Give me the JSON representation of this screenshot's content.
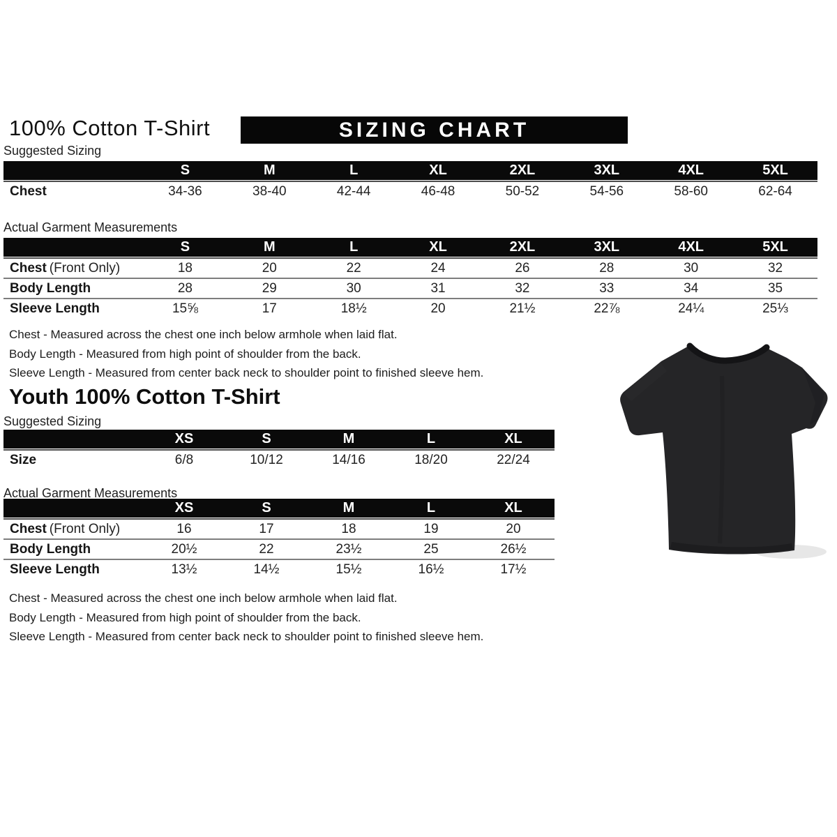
{
  "header": {
    "title": "100% Cotton T-Shirt",
    "banner": "SIZING CHART"
  },
  "adult": {
    "suggested_label": "Suggested Sizing",
    "suggested_columns": [
      "S",
      "M",
      "L",
      "XL",
      "2XL",
      "3XL",
      "4XL",
      "5XL"
    ],
    "suggested_row": {
      "label_bold": "Chest",
      "label_rest": "",
      "values": [
        "34-36",
        "38-40",
        "42-44",
        "46-48",
        "50-52",
        "54-56",
        "58-60",
        "62-64"
      ]
    },
    "actual_label": "Actual Garment Measurements",
    "actual_columns": [
      "S",
      "M",
      "L",
      "XL",
      "2XL",
      "3XL",
      "4XL",
      "5XL"
    ],
    "actual_rows": [
      {
        "label_bold": "Chest",
        "label_rest": "(Front Only)",
        "values": [
          "18",
          "20",
          "22",
          "24",
          "26",
          "28",
          "30",
          "32"
        ]
      },
      {
        "label_bold": "Body Length",
        "label_rest": "",
        "values": [
          "28",
          "29",
          "30",
          "31",
          "32",
          "33",
          "34",
          "35"
        ]
      },
      {
        "label_bold": "Sleeve Length",
        "label_rest": "",
        "values": [
          "15⅝",
          "17",
          "18½",
          "20",
          "21½",
          "22⅞",
          "24¼",
          "25⅓"
        ]
      }
    ],
    "notes": [
      "Chest - Measured across the chest one inch below armhole when laid flat.",
      "Body Length - Measured from high point of shoulder from the back.",
      "Sleeve Length - Measured from center back neck to shoulder point to finished sleeve hem."
    ]
  },
  "youth": {
    "title": "Youth 100% Cotton T-Shirt",
    "suggested_label": "Suggested Sizing",
    "suggested_columns": [
      "XS",
      "S",
      "M",
      "L",
      "XL"
    ],
    "suggested_row": {
      "label_bold": "Size",
      "label_rest": "",
      "values": [
        "6/8",
        "10/12",
        "14/16",
        "18/20",
        "22/24"
      ]
    },
    "actual_label": "Actual Garment Measurements",
    "actual_columns": [
      "XS",
      "S",
      "M",
      "L",
      "XL"
    ],
    "actual_rows": [
      {
        "label_bold": "Chest",
        "label_rest": "(Front Only)",
        "values": [
          "16",
          "17",
          "18",
          "19",
          "20"
        ]
      },
      {
        "label_bold": "Body Length",
        "label_rest": "",
        "values": [
          "20½",
          "22",
          "23½",
          "25",
          "26½"
        ]
      },
      {
        "label_bold": "Sleeve Length",
        "label_rest": "",
        "values": [
          "13½",
          "14½",
          "15½",
          "16½",
          "17½"
        ]
      }
    ],
    "notes": [
      "Chest - Measured across the chest one inch below armhole when laid flat.",
      "Body Length - Measured from high point of shoulder from the back.",
      "Sleeve Length - Measured from center back neck to shoulder point to finished sleeve hem."
    ]
  },
  "tshirt": {
    "icon": "black-tshirt",
    "body_color": "#252527",
    "collar_color": "#141416"
  }
}
